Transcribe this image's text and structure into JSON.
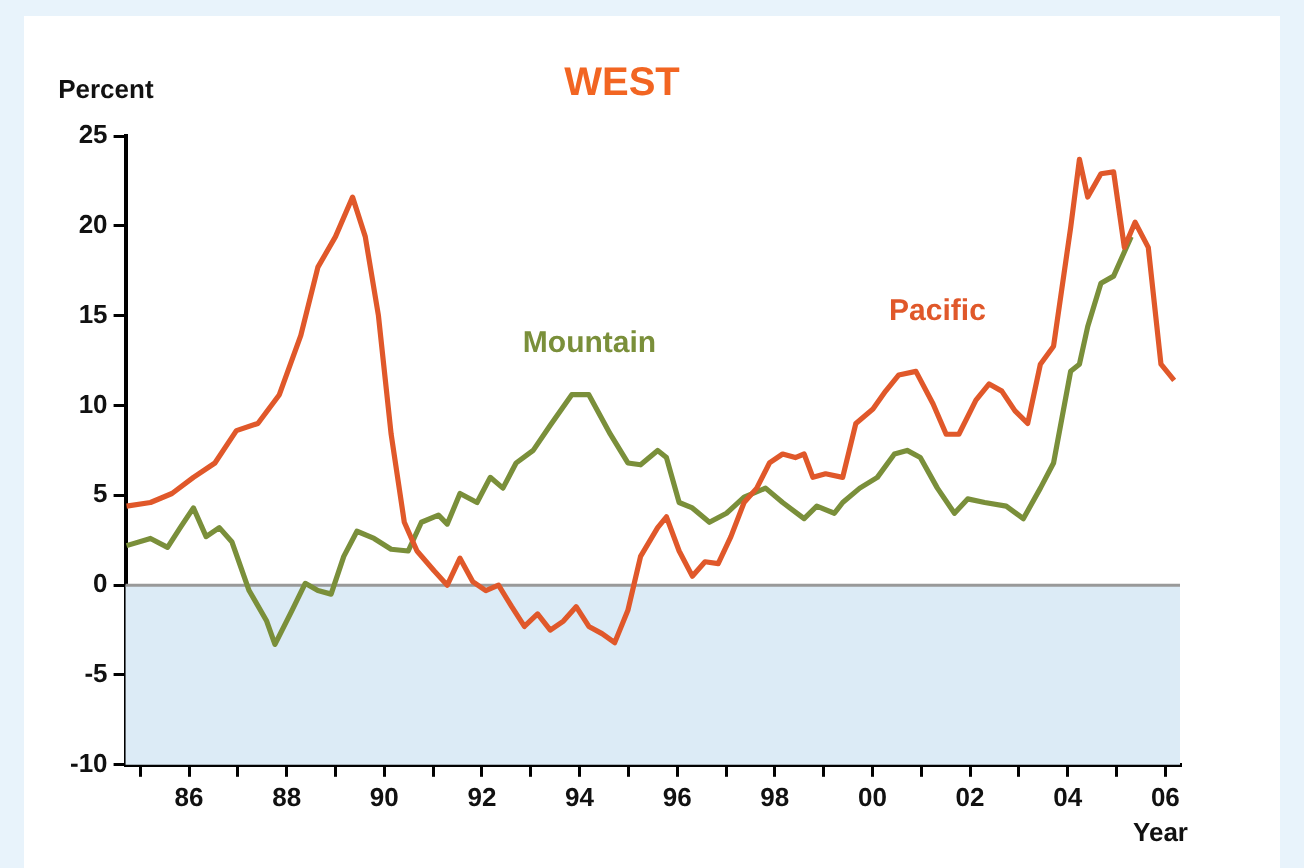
{
  "chart_data": {
    "type": "line",
    "title": "WEST",
    "ylabel": "Percent",
    "xlabel": "Year",
    "xlim": [
      1984.7,
      2006.3
    ],
    "xticks": [
      {
        "value": 1985,
        "label": null
      },
      {
        "value": 1986,
        "label": "86"
      },
      {
        "value": 1987,
        "label": null
      },
      {
        "value": 1988,
        "label": "88"
      },
      {
        "value": 1989,
        "label": null
      },
      {
        "value": 1990,
        "label": "90"
      },
      {
        "value": 1991,
        "label": null
      },
      {
        "value": 1992,
        "label": "92"
      },
      {
        "value": 1993,
        "label": null
      },
      {
        "value": 1994,
        "label": "94"
      },
      {
        "value": 1995,
        "label": null
      },
      {
        "value": 1996,
        "label": "96"
      },
      {
        "value": 1997,
        "label": null
      },
      {
        "value": 1998,
        "label": "98"
      },
      {
        "value": 1999,
        "label": null
      },
      {
        "value": 2000,
        "label": "00"
      },
      {
        "value": 2001,
        "label": null
      },
      {
        "value": 2002,
        "label": "02"
      },
      {
        "value": 2003,
        "label": null
      },
      {
        "value": 2004,
        "label": "04"
      },
      {
        "value": 2005,
        "label": null
      },
      {
        "value": 2006,
        "label": "06"
      }
    ],
    "ylim": [
      -10,
      25
    ],
    "yticks": [
      -10,
      -5,
      0,
      5,
      10,
      15,
      20,
      25
    ],
    "grid": false,
    "legend": false,
    "marker": "none",
    "line_style": "solid",
    "ref_lines": [
      {
        "axis": "y",
        "value": 0,
        "color": "#999999"
      }
    ],
    "bands": [
      {
        "axis": "y",
        "from": 0,
        "to": -10,
        "color": "#dcebf6"
      }
    ],
    "series": [
      {
        "name": "Pacific",
        "color": "#e0582a",
        "x": [
          1984.72,
          1985.21,
          1985.65,
          1986.09,
          1986.53,
          1986.97,
          1987.41,
          1987.85,
          1988.29,
          1988.64,
          1989.0,
          1989.35,
          1989.61,
          1989.88,
          1990.14,
          1990.41,
          1990.67,
          1991.02,
          1991.29,
          1991.55,
          1991.81,
          1992.08,
          1992.34,
          1992.61,
          1992.87,
          1993.14,
          1993.4,
          1993.67,
          1993.93,
          1994.19,
          1994.46,
          1994.72,
          1994.99,
          1995.25,
          1995.6,
          1995.78,
          1996.04,
          1996.31,
          1996.57,
          1996.84,
          1997.1,
          1997.37,
          1997.63,
          1997.89,
          1998.16,
          1998.42,
          1998.6,
          1998.78,
          1999.04,
          1999.39,
          1999.66,
          2000.01,
          2000.27,
          2000.54,
          2000.89,
          2001.24,
          2001.51,
          2001.77,
          2002.12,
          2002.39,
          2002.65,
          2002.92,
          2003.18,
          2003.44,
          2003.71,
          2004.06,
          2004.24,
          2004.41,
          2004.68,
          2004.94,
          2005.16,
          2005.38,
          2005.65,
          2005.91,
          2006.18
        ],
        "values": [
          4.4,
          4.6,
          5.1,
          6.0,
          6.8,
          8.6,
          9.0,
          10.6,
          13.9,
          17.7,
          19.4,
          21.6,
          19.4,
          15.0,
          8.4,
          3.5,
          1.9,
          0.8,
          0,
          1.5,
          0.2,
          -0.3,
          0,
          -1.2,
          -2.3,
          -1.6,
          -2.5,
          -2.0,
          -1.2,
          -2.3,
          -2.7,
          -3.2,
          -1.4,
          1.6,
          3.2,
          3.8,
          1.9,
          0.5,
          1.3,
          1.2,
          2.7,
          4.6,
          5.4,
          6.8,
          7.3,
          7.1,
          7.3,
          6.0,
          6.2,
          6.0,
          9.0,
          9.8,
          10.8,
          11.7,
          11.9,
          10.1,
          8.4,
          8.4,
          10.3,
          11.2,
          10.8,
          9.7,
          9.0,
          12.3,
          13.3,
          19.9,
          23.7,
          21.6,
          22.9,
          23.0,
          18.8,
          20.2,
          18.8,
          12.3,
          11.4
        ]
      },
      {
        "name": "Mountain",
        "color": "#7a8f3a",
        "x": [
          1984.72,
          1985.21,
          1985.56,
          1985.82,
          1986.09,
          1986.35,
          1986.62,
          1986.88,
          1987.23,
          1987.59,
          1987.76,
          1988.11,
          1988.38,
          1988.64,
          1988.91,
          1989.17,
          1989.44,
          1989.79,
          1990.14,
          1990.49,
          1990.76,
          1991.11,
          1991.29,
          1991.55,
          1991.9,
          1992.17,
          1992.43,
          1992.7,
          1993.05,
          1993.4,
          1993.84,
          1994.19,
          1994.63,
          1994.99,
          1995.25,
          1995.6,
          1995.78,
          1996.04,
          1996.31,
          1996.66,
          1997.01,
          1997.37,
          1997.81,
          1998.16,
          1998.6,
          1998.86,
          1999.22,
          1999.39,
          1999.74,
          2000.1,
          2000.45,
          2000.71,
          2000.98,
          2001.33,
          2001.68,
          2001.95,
          2002.3,
          2002.74,
          2003.09,
          2003.44,
          2003.71,
          2004.06,
          2004.24,
          2004.41,
          2004.68,
          2004.94,
          2005.3
        ],
        "values": [
          2.2,
          2.6,
          2.1,
          3.2,
          4.3,
          2.7,
          3.2,
          2.4,
          -0.3,
          -2.0,
          -3.3,
          -1.4,
          0.1,
          -0.3,
          -0.5,
          1.6,
          3.0,
          2.6,
          2.0,
          1.9,
          3.5,
          3.9,
          3.4,
          5.1,
          4.6,
          6.0,
          5.4,
          6.8,
          7.5,
          8.9,
          10.6,
          10.6,
          8.4,
          6.8,
          6.7,
          7.5,
          7.1,
          4.6,
          4.3,
          3.5,
          4.0,
          4.9,
          5.4,
          4.6,
          3.7,
          4.4,
          4.0,
          4.6,
          5.4,
          6.0,
          7.3,
          7.5,
          7.1,
          5.4,
          4.0,
          4.8,
          4.6,
          4.4,
          3.7,
          5.4,
          6.8,
          11.9,
          12.3,
          14.4,
          16.8,
          17.2,
          19.4
        ]
      }
    ]
  }
}
